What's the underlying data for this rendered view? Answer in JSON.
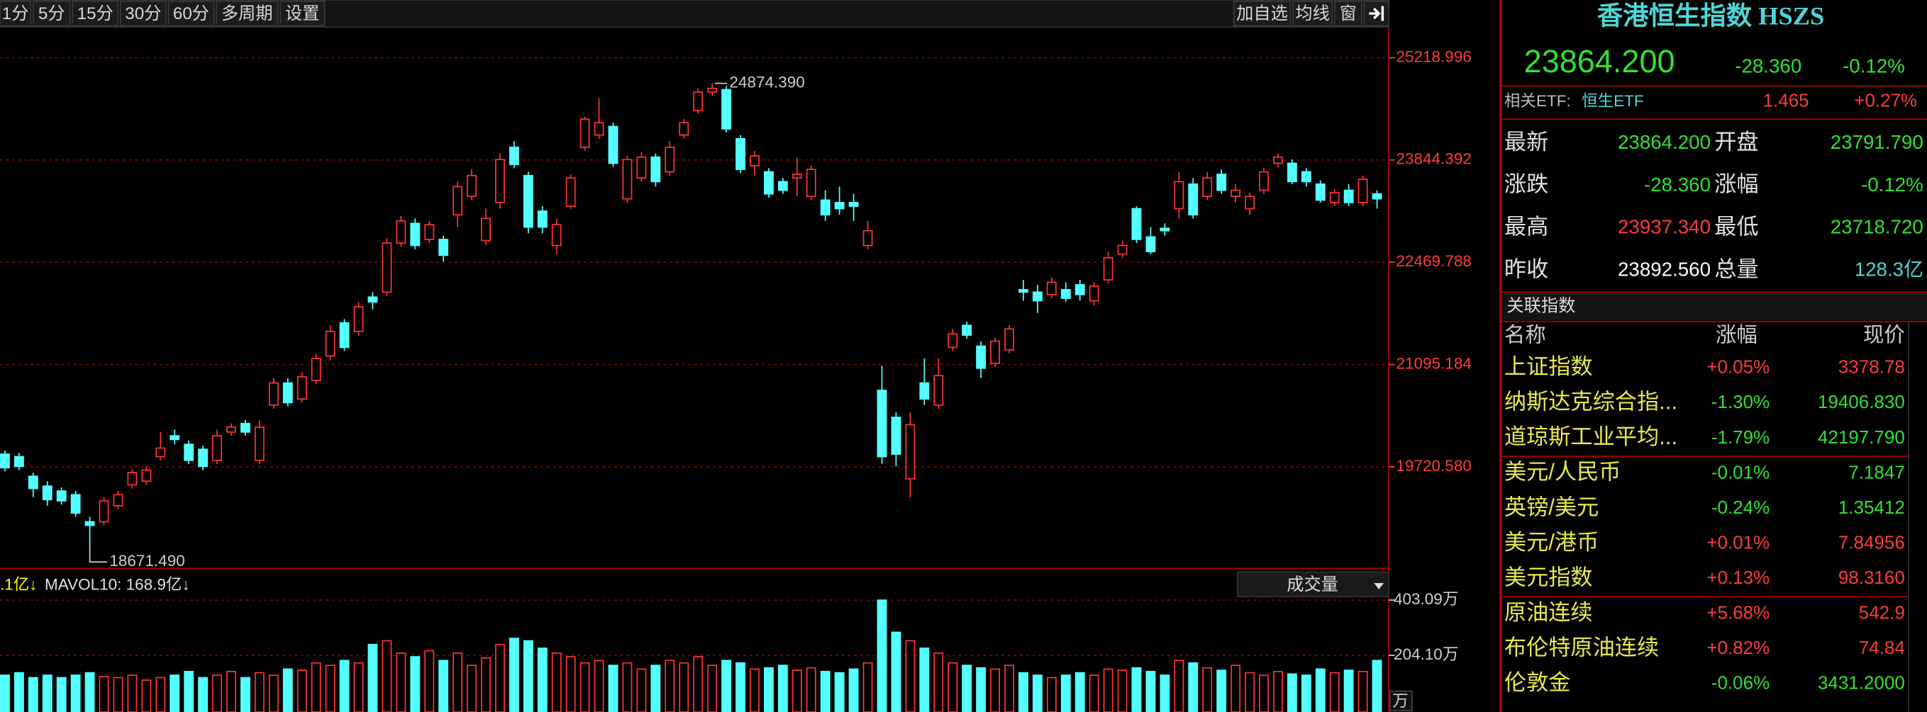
{
  "toolbar": {
    "periods": [
      "1分",
      "5分",
      "15分",
      "30分",
      "60分",
      "多周期",
      "设置"
    ],
    "tools": [
      "加自选",
      "均线",
      "窗"
    ]
  },
  "chart_data": [
    {
      "type": "candlestick",
      "up_color": "#ff3232",
      "down_color": "#54ffff",
      "grid": true,
      "grid_color": "#8b0000",
      "axis_color": "#ff3c3c",
      "ylim": [
        18355,
        25631.5
      ],
      "yticks": [
        {
          "value": 19720.58,
          "label": "19720.580"
        },
        {
          "value": 21095.184,
          "label": "21095.184"
        },
        {
          "value": 22469.788,
          "label": "22469.788"
        },
        {
          "value": 23844.392,
          "label": "23844.392"
        },
        {
          "value": 25218.996,
          "label": "25218.996"
        }
      ],
      "high_label": "24874.390",
      "low_label": "18671.490",
      "open": [
        19890,
        19857,
        19593,
        19461,
        19395,
        19345,
        18982,
        18982,
        19197,
        19477,
        19527,
        19857,
        20137,
        20022,
        19956,
        19807,
        20187,
        20302,
        19807,
        20550,
        20847,
        20632,
        20880,
        21210,
        21655,
        21540,
        22002,
        22068,
        22728,
        22992,
        22777,
        22777,
        23107,
        23355,
        22761,
        23272,
        24015,
        23635,
        23157,
        22695,
        23223,
        24015,
        24180,
        24295,
        23322,
        23602,
        23883,
        23685,
        24180,
        24510,
        24757,
        24790,
        24130,
        23767,
        23685,
        23553,
        23602,
        23355,
        23305,
        23272,
        23272,
        22695,
        20748,
        20385,
        19560,
        20847,
        20550,
        21325,
        21622,
        21342,
        21111,
        21292,
        22101,
        22068,
        22035,
        22101,
        22167,
        21952,
        22233,
        22579,
        23190,
        22810,
        22926,
        23190,
        23520,
        23355,
        23652,
        23355,
        23190,
        23437,
        23800,
        23800,
        23685,
        23520,
        23272,
        23437,
        23272,
        23388
      ],
      "high": [
        19939,
        19906,
        19642,
        19527,
        19444,
        19395,
        19048,
        19312,
        19395,
        19692,
        19725,
        20187,
        20220,
        20071,
        20005,
        20220,
        20302,
        20352,
        20352,
        20913,
        20913,
        20995,
        21243,
        21622,
        21705,
        21936,
        22068,
        22794,
        23091,
        23058,
        23025,
        22827,
        23553,
        23718,
        23190,
        23932,
        24097,
        23685,
        23223,
        23058,
        23652,
        24427,
        24675,
        24345,
        23899,
        23949,
        23932,
        24097,
        24394,
        24807,
        24874.39,
        24840,
        24180,
        23965,
        23734,
        23602,
        23883,
        23767,
        23437,
        23487,
        23388,
        23025,
        21078,
        20451,
        20451,
        21177,
        21177,
        21573,
        21672,
        21408,
        21457,
        21622,
        22233,
        22167,
        22266,
        22200,
        22233,
        22200,
        22612,
        22761,
        23223,
        22942,
        22992,
        23685,
        23602,
        23685,
        23718,
        23520,
        23404,
        23734,
        23932,
        23850,
        23734,
        23569,
        23454,
        23520,
        23635,
        23437
      ],
      "low": [
        19659,
        19675,
        19312,
        19197,
        19213,
        19048,
        18671.49,
        18933,
        19147,
        19428,
        19477,
        19807,
        20022,
        19758,
        19675,
        19758,
        20137,
        20137,
        19758,
        20500,
        20533,
        20583,
        20830,
        21160,
        21276,
        21490,
        21837,
        22018,
        22678,
        22645,
        22728,
        22480,
        22942,
        23305,
        22695,
        23190,
        23734,
        22860,
        22860,
        22579,
        23190,
        23965,
        24130,
        23751,
        23272,
        23553,
        23487,
        23635,
        24130,
        24460,
        24708,
        24213,
        23668,
        23635,
        23338,
        23388,
        23355,
        23305,
        23025,
        23107,
        23025,
        22645,
        19758,
        19725,
        19312,
        20550,
        20500,
        21276,
        21441,
        20913,
        21061,
        21243,
        21952,
        21787,
        21985,
        21936,
        21952,
        21886,
        22183,
        22530,
        22728,
        22579,
        22827,
        23058,
        23058,
        23305,
        23388,
        23272,
        23107,
        23388,
        23751,
        23520,
        23487,
        23272,
        23223,
        23223,
        23223,
        23190
      ],
      "close": [
        19708,
        19725,
        19428,
        19279,
        19263,
        19098,
        18933,
        19263,
        19345,
        19642,
        19675,
        19972,
        20088,
        19807,
        19725,
        20137,
        20253,
        20187,
        20253,
        20847,
        20583,
        20929,
        21177,
        21540,
        21325,
        21870,
        21936,
        22728,
        23025,
        22695,
        22975,
        22563,
        23487,
        23635,
        23058,
        23850,
        23784,
        22942,
        22942,
        22975,
        23602,
        24394,
        24345,
        23800,
        23850,
        23883,
        23553,
        24015,
        24345,
        24757,
        24807,
        24262,
        23718,
        23899,
        23388,
        23437,
        23652,
        23718,
        23107,
        23190,
        23223,
        22893,
        19857,
        19890,
        20286,
        20632,
        20946,
        21507,
        21490,
        21045,
        21408,
        21573,
        22068,
        21952,
        22200,
        21985,
        22035,
        22150,
        22530,
        22695,
        22777,
        22612,
        22893,
        23553,
        23107,
        23602,
        23437,
        23437,
        23355,
        23685,
        23883,
        23553,
        23553,
        23305,
        23404,
        23272,
        23586,
        23322
      ]
    },
    {
      "type": "bar",
      "legend": [
        ".1亿↓",
        "MAVOL10: 168.9亿↓"
      ],
      "legend_colors": [
        "#ffff00",
        "#e0e0e0"
      ],
      "dropdown": "成交量",
      "unit_label": "万",
      "grid": true,
      "grid_color": "#8b0000",
      "axis_color": "#d0d0d0",
      "ylim": [
        0,
        411.3
      ],
      "yticks": [
        {
          "value": 204.1,
          "label": "204.10万"
        },
        {
          "value": 403.09,
          "label": "403.09万"
        }
      ],
      "values": [
        132.6,
        141.4,
        123.8,
        132.6,
        123.8,
        132.6,
        141.4,
        128.2,
        123.8,
        132.6,
        114.9,
        123.8,
        132.6,
        145.9,
        123.8,
        132.6,
        145.9,
        123.8,
        141.4,
        132.6,
        154.7,
        150.3,
        176.8,
        168,
        185.6,
        176.8,
        243.1,
        256.4,
        212.2,
        198.9,
        221,
        185.6,
        212.2,
        168,
        194.5,
        243.1,
        265.2,
        256.4,
        229.8,
        212.2,
        198.9,
        176.8,
        185.6,
        168,
        176.8,
        154.7,
        168,
        185.6,
        176.8,
        198.9,
        168,
        185.6,
        176.8,
        154.7,
        159.1,
        168,
        150.3,
        159.1,
        145.9,
        141.4,
        154.7,
        176.8,
        403.09,
        287.3,
        256.4,
        229.8,
        212.2,
        176.8,
        168,
        159.1,
        154.7,
        168,
        141.4,
        132.6,
        123.8,
        132.6,
        141.4,
        132.6,
        154.7,
        150.3,
        159.1,
        145.9,
        132.6,
        185.6,
        176.8,
        159.1,
        150.3,
        168,
        141.4,
        132.6,
        145.9,
        137,
        132.6,
        154.7,
        141.4,
        150.3,
        145.9,
        185.6
      ]
    }
  ],
  "sidebar": {
    "title": "香港恒生指数 HSZS",
    "title_color": "#4fd6d6",
    "quote": {
      "price": "23864.200",
      "change": "-28.360",
      "change_pct": "-0.12%",
      "color": "#33e033"
    },
    "etf": {
      "label": "相关ETF:",
      "name": "恒生ETF",
      "price": "1.465",
      "change_pct": "+0.27%",
      "color": "#ff3c3c",
      "name_color": "#4fd6d6"
    },
    "stats": [
      {
        "label": "最新",
        "value": "23864.200",
        "color": "#33e033"
      },
      {
        "label": "开盘",
        "value": "23791.790",
        "color": "#33e033"
      },
      {
        "label": "涨跌",
        "value": "-28.360",
        "color": "#33e033"
      },
      {
        "label": "涨幅",
        "value": "-0.12%",
        "color": "#33e033"
      },
      {
        "label": "最高",
        "value": "23937.340",
        "color": "#ff3c3c"
      },
      {
        "label": "最低",
        "value": "23718.720",
        "color": "#33e033"
      },
      {
        "label": "昨收",
        "value": "23892.560",
        "color": "#ffffff"
      },
      {
        "label": "总量",
        "value": "128.3亿",
        "color": "#4fd6d6"
      }
    ],
    "related": {
      "title": "关联指数",
      "columns": [
        "名称",
        "涨幅",
        "现价"
      ],
      "name_color": "#e8e850",
      "rows": [
        {
          "name": "上证指数",
          "change": "+0.05%",
          "price": "3378.78",
          "color": "#ff3c3c"
        },
        {
          "name": "纳斯达克综合指...",
          "change": "-1.30%",
          "price": "19406.830",
          "color": "#33e033"
        },
        {
          "name": "道琼斯工业平均...",
          "change": "-1.79%",
          "price": "42197.790",
          "color": "#33e033"
        },
        {
          "name": "美元/人民币",
          "change": "-0.01%",
          "price": "7.1847",
          "color": "#33e033"
        },
        {
          "name": "英镑/美元",
          "change": "-0.24%",
          "price": "1.35412",
          "color": "#33e033"
        },
        {
          "name": "美元/港币",
          "change": "+0.01%",
          "price": "7.84956",
          "color": "#ff3c3c"
        },
        {
          "name": "美元指数",
          "change": "+0.13%",
          "price": "98.3160",
          "color": "#ff3c3c"
        },
        {
          "name": "原油连续",
          "change": "+5.68%",
          "price": "542.9",
          "color": "#ff3c3c"
        },
        {
          "name": "布伦特原油连续",
          "change": "+0.82%",
          "price": "74.84",
          "color": "#ff3c3c"
        },
        {
          "name": "伦敦金",
          "change": "-0.06%",
          "price": "3431.2000",
          "color": "#33e033"
        }
      ]
    }
  }
}
